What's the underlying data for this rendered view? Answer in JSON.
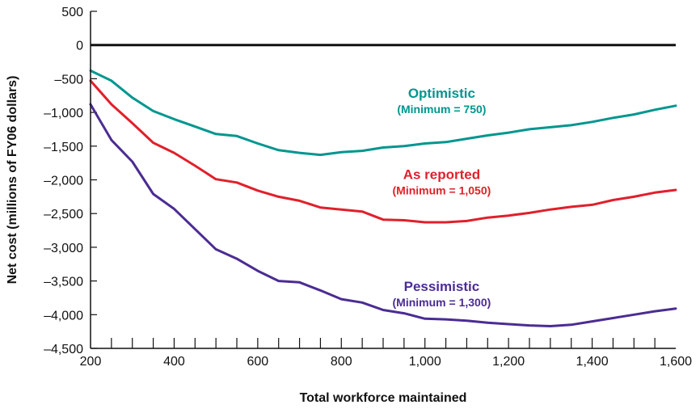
{
  "chart_data": {
    "type": "line",
    "title": "",
    "xlabel": "Total workforce maintained",
    "ylabel": "Net cost (millions of FY06 dollars)",
    "xlim": [
      200,
      1600
    ],
    "ylim": [
      -4500,
      500
    ],
    "xticks": [
      200,
      400,
      600,
      800,
      1000,
      1200,
      1400,
      1600
    ],
    "xtick_labels": [
      "200",
      "400",
      "600",
      "800",
      "1,000",
      "1,200",
      "1,400",
      "1,600"
    ],
    "yticks": [
      500,
      0,
      -500,
      -1000,
      -1500,
      -2000,
      -2500,
      -3000,
      -3500,
      -4000,
      -4500
    ],
    "ytick_labels": [
      "500",
      "0",
      "–500",
      "–1,000",
      "–1,500",
      "–2,000",
      "–2,500",
      "–3,000",
      "–3,500",
      "–4,000",
      "–4,500"
    ],
    "zero_line": 0,
    "grid": false,
    "legend": "none",
    "x": [
      200,
      250,
      300,
      350,
      400,
      450,
      500,
      550,
      600,
      650,
      700,
      750,
      800,
      850,
      900,
      950,
      1000,
      1050,
      1100,
      1150,
      1200,
      1250,
      1300,
      1350,
      1400,
      1450,
      1500,
      1550,
      1600
    ],
    "series": [
      {
        "name": "Optimistic",
        "annotation": "(Minimum = 750)",
        "color": "#00968f",
        "values": [
          -380,
          -530,
          -780,
          -980,
          -1100,
          -1210,
          -1320,
          -1350,
          -1460,
          -1560,
          -1600,
          -1630,
          -1590,
          -1570,
          -1520,
          -1500,
          -1460,
          -1440,
          -1390,
          -1340,
          -1300,
          -1250,
          -1220,
          -1190,
          -1140,
          -1080,
          -1030,
          -960,
          -900
        ]
      },
      {
        "name": "As reported",
        "annotation": "(Minimum = 1,050)",
        "color": "#e0202b",
        "values": [
          -530,
          -880,
          -1160,
          -1450,
          -1600,
          -1790,
          -1990,
          -2040,
          -2160,
          -2250,
          -2310,
          -2410,
          -2440,
          -2470,
          -2590,
          -2600,
          -2630,
          -2630,
          -2610,
          -2560,
          -2530,
          -2490,
          -2440,
          -2400,
          -2370,
          -2300,
          -2250,
          -2190,
          -2150
        ]
      },
      {
        "name": "Pessimistic",
        "annotation": "(Minimum = 1,300)",
        "color": "#4b2c93",
        "values": [
          -880,
          -1410,
          -1730,
          -2210,
          -2430,
          -2730,
          -3030,
          -3170,
          -3350,
          -3500,
          -3520,
          -3640,
          -3770,
          -3820,
          -3930,
          -3980,
          -4060,
          -4070,
          -4090,
          -4120,
          -4140,
          -4160,
          -4170,
          -4150,
          -4100,
          -4050,
          -4000,
          -3950,
          -3910
        ]
      }
    ]
  }
}
